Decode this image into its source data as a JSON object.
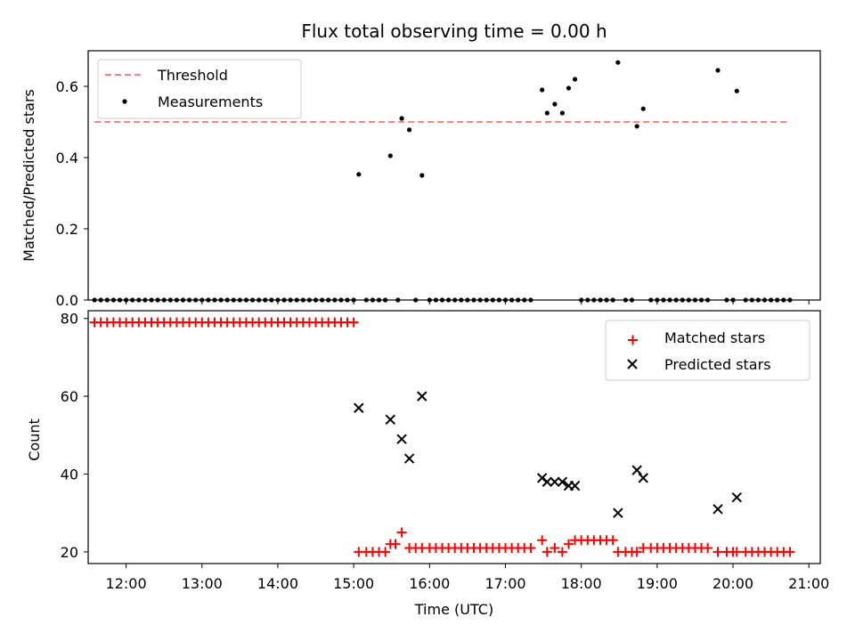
{
  "title": "Flux total observing time = 0.00 h",
  "chart_data": [
    {
      "type": "scatter",
      "ylabel": "Matched/Predicted stars",
      "ylim": [
        0,
        0.7
      ],
      "yticks": [
        "0.0",
        "0.2",
        "0.4",
        "0.6"
      ],
      "xlim": [
        "11:30",
        "21:09"
      ],
      "legend": {
        "placement": "top-left",
        "entries": [
          "Threshold",
          "Measurements"
        ]
      },
      "colors": {
        "threshold": "#ff8080",
        "measurements": "#000000"
      },
      "threshold": {
        "name": "Threshold",
        "value": 0.5,
        "x_start": "11:35",
        "x_end": "20:43"
      },
      "series": [
        {
          "name": "Measurements",
          "marker": "dot",
          "points": [
            [
              "11:35",
              0
            ],
            [
              "11:40",
              0
            ],
            [
              "11:45",
              0
            ],
            [
              "11:50",
              0
            ],
            [
              "11:55",
              0
            ],
            [
              "12:00",
              0
            ],
            [
              "12:05",
              0
            ],
            [
              "12:10",
              0
            ],
            [
              "12:15",
              0
            ],
            [
              "12:20",
              0
            ],
            [
              "12:25",
              0
            ],
            [
              "12:30",
              0
            ],
            [
              "12:35",
              0
            ],
            [
              "12:40",
              0
            ],
            [
              "12:45",
              0
            ],
            [
              "12:50",
              0
            ],
            [
              "12:55",
              0
            ],
            [
              "13:00",
              0
            ],
            [
              "13:05",
              0
            ],
            [
              "13:10",
              0
            ],
            [
              "13:15",
              0
            ],
            [
              "13:20",
              0
            ],
            [
              "13:25",
              0
            ],
            [
              "13:30",
              0
            ],
            [
              "13:35",
              0
            ],
            [
              "13:40",
              0
            ],
            [
              "13:45",
              0
            ],
            [
              "13:50",
              0
            ],
            [
              "13:55",
              0
            ],
            [
              "14:00",
              0
            ],
            [
              "14:05",
              0
            ],
            [
              "14:10",
              0
            ],
            [
              "14:15",
              0
            ],
            [
              "14:20",
              0
            ],
            [
              "14:25",
              0
            ],
            [
              "14:30",
              0
            ],
            [
              "14:35",
              0
            ],
            [
              "14:40",
              0
            ],
            [
              "14:45",
              0
            ],
            [
              "14:50",
              0
            ],
            [
              "14:55",
              0
            ],
            [
              "15:00",
              0
            ],
            [
              "15:04",
              0.353
            ],
            [
              "15:10",
              0
            ],
            [
              "15:15",
              0
            ],
            [
              "15:20",
              0
            ],
            [
              "15:25",
              0
            ],
            [
              "15:29",
              0.405
            ],
            [
              "15:35",
              0
            ],
            [
              "15:38",
              0.51
            ],
            [
              "15:44",
              0.478
            ],
            [
              "15:49",
              0
            ],
            [
              "15:54",
              0.35
            ],
            [
              "16:00",
              0
            ],
            [
              "16:05",
              0
            ],
            [
              "16:10",
              0
            ],
            [
              "16:15",
              0
            ],
            [
              "16:20",
              0
            ],
            [
              "16:25",
              0
            ],
            [
              "16:30",
              0
            ],
            [
              "16:35",
              0
            ],
            [
              "16:40",
              0
            ],
            [
              "16:45",
              0
            ],
            [
              "16:50",
              0
            ],
            [
              "16:55",
              0
            ],
            [
              "17:00",
              0
            ],
            [
              "17:05",
              0
            ],
            [
              "17:10",
              0
            ],
            [
              "17:15",
              0
            ],
            [
              "17:20",
              0
            ],
            [
              "17:29",
              0.59
            ],
            [
              "17:33",
              0.525
            ],
            [
              "17:39",
              0.55
            ],
            [
              "17:45",
              0.525
            ],
            [
              "17:50",
              0.595
            ],
            [
              "17:55",
              0.62
            ],
            [
              "18:00",
              0
            ],
            [
              "18:05",
              0
            ],
            [
              "18:10",
              0
            ],
            [
              "18:15",
              0
            ],
            [
              "18:20",
              0
            ],
            [
              "18:25",
              0
            ],
            [
              "18:29",
              0.667
            ],
            [
              "18:35",
              0
            ],
            [
              "18:40",
              0
            ],
            [
              "18:44",
              0.488
            ],
            [
              "18:49",
              0.537
            ],
            [
              "18:55",
              0
            ],
            [
              "19:00",
              0
            ],
            [
              "19:05",
              0
            ],
            [
              "19:10",
              0
            ],
            [
              "19:15",
              0
            ],
            [
              "19:20",
              0
            ],
            [
              "19:25",
              0
            ],
            [
              "19:30",
              0
            ],
            [
              "19:35",
              0
            ],
            [
              "19:40",
              0
            ],
            [
              "19:48",
              0.645
            ],
            [
              "19:55",
              0
            ],
            [
              "20:00",
              0
            ],
            [
              "20:03",
              0.587
            ],
            [
              "20:10",
              0
            ],
            [
              "20:15",
              0
            ],
            [
              "20:20",
              0
            ],
            [
              "20:25",
              0
            ],
            [
              "20:30",
              0
            ],
            [
              "20:35",
              0
            ],
            [
              "20:40",
              0
            ],
            [
              "20:45",
              0
            ]
          ]
        }
      ]
    },
    {
      "type": "scatter",
      "xlabel": "Time (UTC)",
      "ylabel": "Count",
      "ylim": [
        17,
        82
      ],
      "yticks": [
        "20",
        "40",
        "60",
        "80"
      ],
      "xticks": [
        "12:00",
        "13:00",
        "14:00",
        "15:00",
        "16:00",
        "17:00",
        "18:00",
        "19:00",
        "20:00",
        "21:00"
      ],
      "xlim": [
        "11:30",
        "21:09"
      ],
      "legend": {
        "placement": "top-right",
        "entries": [
          "Matched stars",
          "Predicted stars"
        ]
      },
      "colors": {
        "matched": "#ff0000",
        "predicted": "#000000"
      },
      "series": [
        {
          "name": "Matched stars",
          "marker": "plus",
          "points": [
            [
              "11:35",
              79
            ],
            [
              "11:40",
              79
            ],
            [
              "11:45",
              79
            ],
            [
              "11:50",
              79
            ],
            [
              "11:55",
              79
            ],
            [
              "12:00",
              79
            ],
            [
              "12:05",
              79
            ],
            [
              "12:10",
              79
            ],
            [
              "12:15",
              79
            ],
            [
              "12:20",
              79
            ],
            [
              "12:25",
              79
            ],
            [
              "12:30",
              79
            ],
            [
              "12:35",
              79
            ],
            [
              "12:40",
              79
            ],
            [
              "12:45",
              79
            ],
            [
              "12:50",
              79
            ],
            [
              "12:55",
              79
            ],
            [
              "13:00",
              79
            ],
            [
              "13:05",
              79
            ],
            [
              "13:10",
              79
            ],
            [
              "13:15",
              79
            ],
            [
              "13:20",
              79
            ],
            [
              "13:25",
              79
            ],
            [
              "13:30",
              79
            ],
            [
              "13:35",
              79
            ],
            [
              "13:40",
              79
            ],
            [
              "13:45",
              79
            ],
            [
              "13:50",
              79
            ],
            [
              "13:55",
              79
            ],
            [
              "14:00",
              79
            ],
            [
              "14:05",
              79
            ],
            [
              "14:10",
              79
            ],
            [
              "14:15",
              79
            ],
            [
              "14:20",
              79
            ],
            [
              "14:25",
              79
            ],
            [
              "14:30",
              79
            ],
            [
              "14:35",
              79
            ],
            [
              "14:40",
              79
            ],
            [
              "14:45",
              79
            ],
            [
              "14:50",
              79
            ],
            [
              "14:55",
              79
            ],
            [
              "15:00",
              79
            ],
            [
              "15:04",
              20
            ],
            [
              "15:10",
              20
            ],
            [
              "15:15",
              20
            ],
            [
              "15:20",
              20
            ],
            [
              "15:25",
              20
            ],
            [
              "15:29",
              22
            ],
            [
              "15:33",
              22
            ],
            [
              "15:38",
              25
            ],
            [
              "15:44",
              21
            ],
            [
              "15:49",
              21
            ],
            [
              "15:54",
              21
            ],
            [
              "16:00",
              21
            ],
            [
              "16:05",
              21
            ],
            [
              "16:10",
              21
            ],
            [
              "16:15",
              21
            ],
            [
              "16:20",
              21
            ],
            [
              "16:25",
              21
            ],
            [
              "16:30",
              21
            ],
            [
              "16:35",
              21
            ],
            [
              "16:40",
              21
            ],
            [
              "16:45",
              21
            ],
            [
              "16:50",
              21
            ],
            [
              "16:55",
              21
            ],
            [
              "17:00",
              21
            ],
            [
              "17:05",
              21
            ],
            [
              "17:10",
              21
            ],
            [
              "17:15",
              21
            ],
            [
              "17:20",
              21
            ],
            [
              "17:29",
              23
            ],
            [
              "17:33",
              20
            ],
            [
              "17:39",
              21
            ],
            [
              "17:45",
              20
            ],
            [
              "17:50",
              22
            ],
            [
              "17:55",
              23
            ],
            [
              "18:00",
              23
            ],
            [
              "18:05",
              23
            ],
            [
              "18:10",
              23
            ],
            [
              "18:15",
              23
            ],
            [
              "18:20",
              23
            ],
            [
              "18:25",
              23
            ],
            [
              "18:29",
              20
            ],
            [
              "18:35",
              20
            ],
            [
              "18:40",
              20
            ],
            [
              "18:44",
              20
            ],
            [
              "18:49",
              21
            ],
            [
              "18:55",
              21
            ],
            [
              "19:00",
              21
            ],
            [
              "19:05",
              21
            ],
            [
              "19:10",
              21
            ],
            [
              "19:15",
              21
            ],
            [
              "19:20",
              21
            ],
            [
              "19:25",
              21
            ],
            [
              "19:30",
              21
            ],
            [
              "19:35",
              21
            ],
            [
              "19:40",
              21
            ],
            [
              "19:48",
              20
            ],
            [
              "19:55",
              20
            ],
            [
              "20:00",
              20
            ],
            [
              "20:03",
              20
            ],
            [
              "20:10",
              20
            ],
            [
              "20:15",
              20
            ],
            [
              "20:20",
              20
            ],
            [
              "20:25",
              20
            ],
            [
              "20:30",
              20
            ],
            [
              "20:35",
              20
            ],
            [
              "20:40",
              20
            ],
            [
              "20:45",
              20
            ]
          ]
        },
        {
          "name": "Predicted stars",
          "marker": "x",
          "points": [
            [
              "15:04",
              57
            ],
            [
              "15:29",
              54
            ],
            [
              "15:38",
              49
            ],
            [
              "15:44",
              44
            ],
            [
              "15:54",
              60
            ],
            [
              "17:29",
              39
            ],
            [
              "17:33",
              38
            ],
            [
              "17:39",
              38
            ],
            [
              "17:45",
              38
            ],
            [
              "17:50",
              37
            ],
            [
              "17:55",
              37
            ],
            [
              "18:29",
              30
            ],
            [
              "18:44",
              41
            ],
            [
              "18:49",
              39
            ],
            [
              "19:48",
              31
            ],
            [
              "20:03",
              34
            ]
          ]
        }
      ]
    }
  ]
}
